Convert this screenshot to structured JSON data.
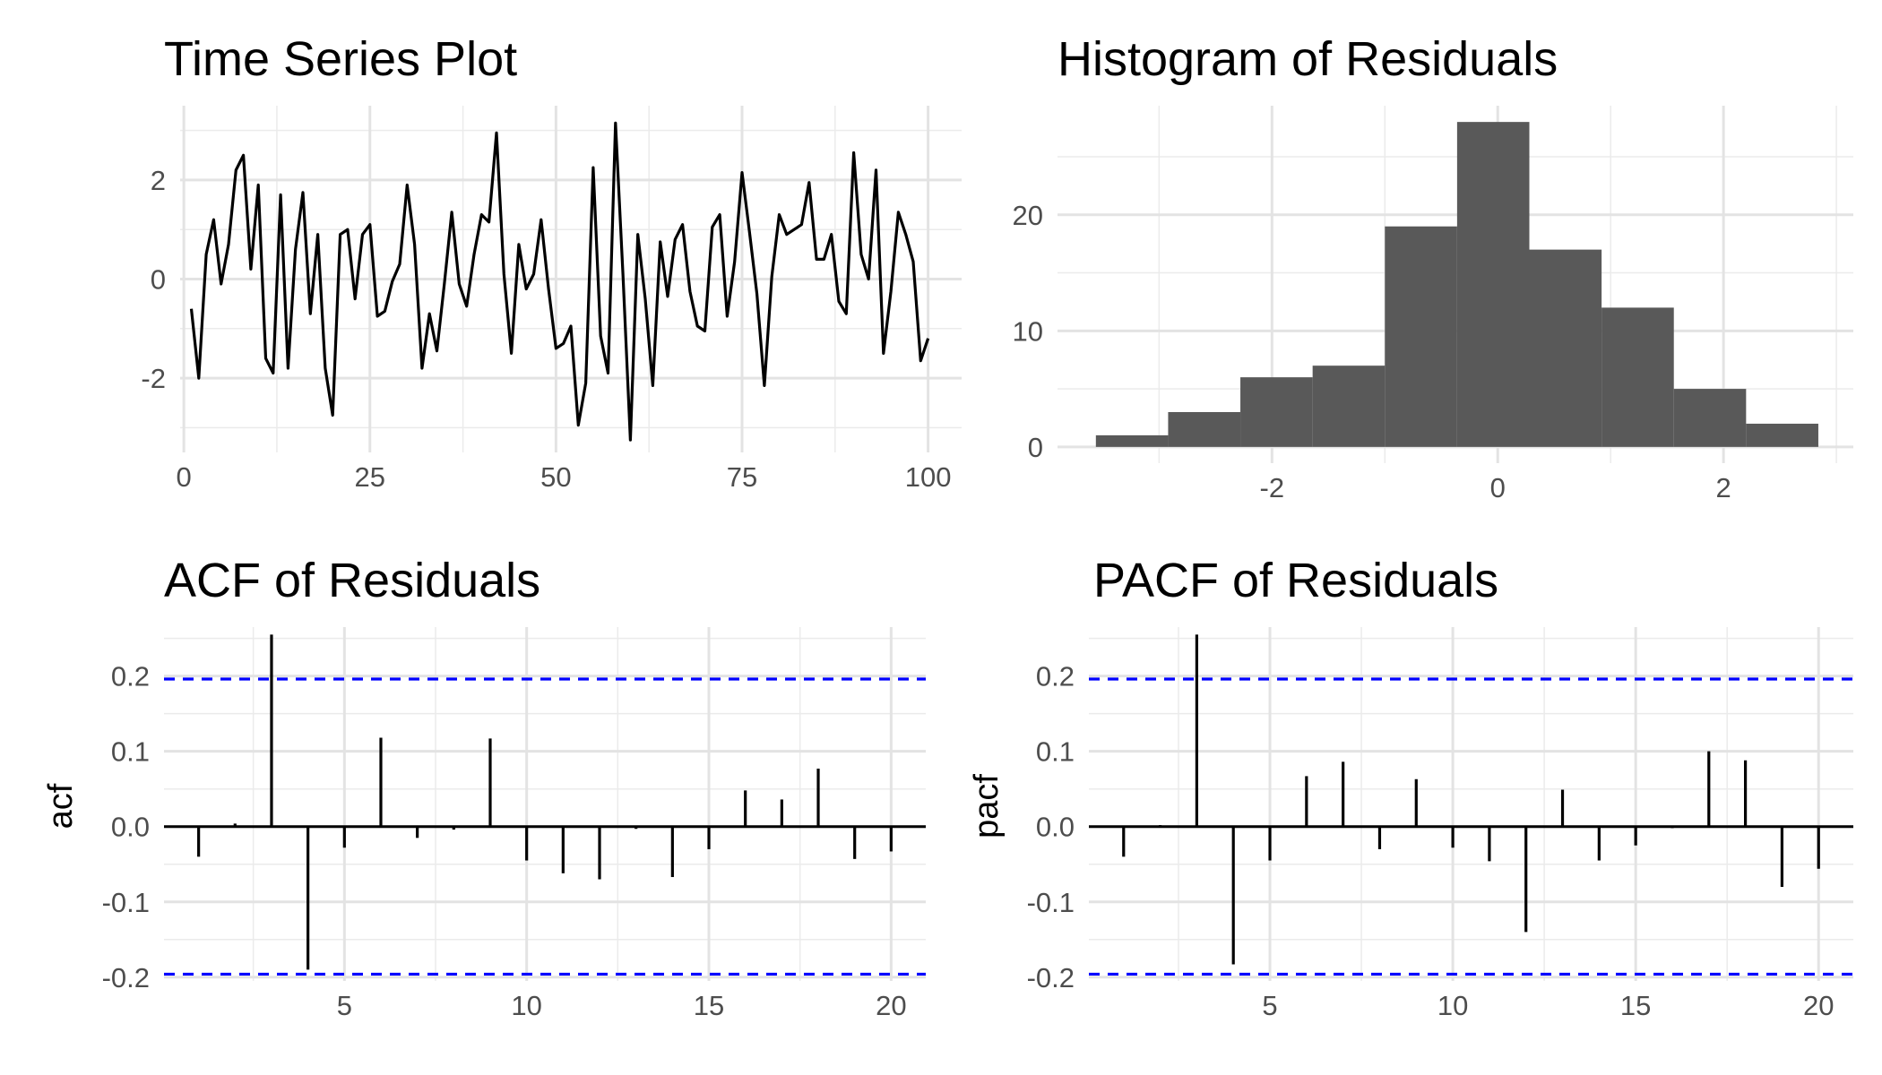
{
  "chart_data": [
    {
      "id": "ts",
      "type": "line",
      "title": "Time Series Plot",
      "xlabel": "",
      "ylabel": "",
      "xlim": [
        -0.5,
        104.5
      ],
      "ylim": [
        -3.5,
        3.5
      ],
      "x_ticks": [
        0,
        25,
        50,
        75,
        100
      ],
      "x_tick_labels": [
        "0",
        "25",
        "50",
        "75",
        "100"
      ],
      "y_ticks": [
        -2,
        0,
        2
      ],
      "y_tick_labels": [
        "-2",
        "0",
        "2"
      ],
      "grid": true,
      "line_color": "#000000",
      "series": [
        {
          "x": [
            1,
            2,
            3,
            4,
            5,
            6,
            7,
            8,
            9,
            10,
            11,
            12,
            13,
            14,
            15,
            16,
            17,
            18,
            19,
            20,
            21,
            22,
            23,
            24,
            25,
            26,
            27,
            28,
            29,
            30,
            31,
            32,
            33,
            34,
            35,
            36,
            37,
            38,
            39,
            40,
            41,
            42,
            43,
            44,
            45,
            46,
            47,
            48,
            49,
            50,
            51,
            52,
            53,
            54,
            55,
            56,
            57,
            58,
            59,
            60,
            61,
            62,
            63,
            64,
            65,
            66,
            67,
            68,
            69,
            70,
            71,
            72,
            73,
            74,
            75,
            76,
            77,
            78,
            79,
            80,
            81,
            82,
            83,
            84,
            85,
            86,
            87,
            88,
            89,
            90,
            91,
            92,
            93,
            94,
            95,
            96,
            97,
            98,
            99,
            100
          ],
          "values": [
            -0.6,
            -2.0,
            0.5,
            1.2,
            -0.1,
            0.7,
            2.2,
            2.5,
            0.2,
            1.9,
            -1.6,
            -1.9,
            1.7,
            -1.8,
            0.6,
            1.75,
            -0.7,
            0.9,
            -1.8,
            -2.75,
            0.9,
            1.0,
            -0.4,
            0.9,
            1.1,
            -0.75,
            -0.65,
            -0.05,
            0.3,
            1.9,
            0.7,
            -1.8,
            -0.7,
            -1.45,
            -0.1,
            1.35,
            -0.1,
            -0.55,
            0.5,
            1.3,
            1.15,
            2.95,
            0.1,
            -1.5,
            0.7,
            -0.2,
            0.1,
            1.2,
            -0.2,
            -1.4,
            -1.3,
            -0.95,
            -2.95,
            -2.1,
            2.25,
            -1.15,
            -1.9,
            3.15,
            0.1,
            -3.25,
            0.9,
            -0.4,
            -2.15,
            0.75,
            -0.35,
            0.8,
            1.1,
            -0.25,
            -0.95,
            -1.05,
            1.05,
            1.3,
            -0.75,
            0.35,
            2.15,
            0.95,
            -0.3,
            -2.15,
            0.05,
            1.3,
            0.9,
            1.0,
            1.1,
            1.95,
            0.4,
            0.4,
            0.9,
            -0.45,
            -0.7,
            2.55,
            0.5,
            0.0,
            2.2,
            -1.5,
            -0.25,
            1.35,
            0.9,
            0.35,
            -1.65,
            -1.2
          ]
        }
      ]
    },
    {
      "id": "hist",
      "type": "bar",
      "title": "Histogram of Residuals",
      "xlabel": "",
      "ylabel": "",
      "xlim": [
        -3.9,
        3.15
      ],
      "ylim": [
        -1.4,
        29.4
      ],
      "x_ticks": [
        -2,
        0,
        2
      ],
      "x_tick_labels": [
        "-2",
        "0",
        "2"
      ],
      "y_ticks": [
        0,
        10,
        20
      ],
      "y_tick_labels": [
        "0",
        "10",
        "20"
      ],
      "grid": true,
      "bar_color": "#595959",
      "bins": [
        {
          "x0": -3.56,
          "x1": -2.92,
          "count": 1
        },
        {
          "x0": -2.92,
          "x1": -2.28,
          "count": 3
        },
        {
          "x0": -2.28,
          "x1": -1.64,
          "count": 6
        },
        {
          "x0": -1.64,
          "x1": -1.0,
          "count": 7
        },
        {
          "x0": -1.0,
          "x1": -0.36,
          "count": 19
        },
        {
          "x0": -0.36,
          "x1": 0.28,
          "count": 28
        },
        {
          "x0": 0.28,
          "x1": 0.92,
          "count": 17
        },
        {
          "x0": 0.92,
          "x1": 1.56,
          "count": 12
        },
        {
          "x0": 1.56,
          "x1": 2.2,
          "count": 5
        },
        {
          "x0": 2.2,
          "x1": 2.84,
          "count": 2
        }
      ]
    },
    {
      "id": "acf",
      "type": "bar",
      "title": "ACF of Residuals",
      "xlabel": "",
      "ylabel": "acf",
      "xlim": [
        0.05,
        20.95
      ],
      "ylim": [
        -0.205,
        0.265
      ],
      "x_ticks": [
        5,
        10,
        15,
        20
      ],
      "x_tick_labels": [
        "5",
        "10",
        "15",
        "20"
      ],
      "y_ticks": [
        -0.2,
        -0.1,
        0.0,
        0.1,
        0.2
      ],
      "y_tick_labels": [
        "-0.2",
        "-0.1",
        "0.0",
        "0.1",
        "0.2"
      ],
      "grid": true,
      "confidence_bound": 0.196,
      "bound_color": "#0000ff",
      "lags": [
        1,
        2,
        3,
        4,
        5,
        6,
        7,
        8,
        9,
        10,
        11,
        12,
        13,
        14,
        15,
        16,
        17,
        18,
        19,
        20
      ],
      "values": [
        -0.04,
        0.004,
        0.255,
        -0.19,
        -0.028,
        0.118,
        -0.015,
        -0.004,
        0.117,
        -0.045,
        -0.062,
        -0.07,
        -0.003,
        -0.067,
        -0.03,
        0.048,
        0.036,
        0.077,
        -0.043,
        -0.033
      ]
    },
    {
      "id": "pacf",
      "type": "bar",
      "title": "PACF of Residuals",
      "xlabel": "",
      "ylabel": "pacf",
      "xlim": [
        0.05,
        20.95
      ],
      "ylim": [
        -0.205,
        0.265
      ],
      "x_ticks": [
        5,
        10,
        15,
        20
      ],
      "x_tick_labels": [
        "5",
        "10",
        "15",
        "20"
      ],
      "y_ticks": [
        -0.2,
        -0.1,
        0.0,
        0.1,
        0.2
      ],
      "y_tick_labels": [
        "-0.2",
        "-0.1",
        "0.0",
        "0.1",
        "0.2"
      ],
      "grid": true,
      "confidence_bound": 0.196,
      "bound_color": "#0000ff",
      "lags": [
        1,
        2,
        3,
        4,
        5,
        6,
        7,
        8,
        9,
        10,
        11,
        12,
        13,
        14,
        15,
        16,
        17,
        18,
        19,
        20
      ],
      "values": [
        -0.04,
        0.002,
        0.255,
        -0.183,
        -0.045,
        0.067,
        0.086,
        -0.03,
        0.063,
        -0.028,
        -0.046,
        -0.14,
        0.049,
        -0.045,
        -0.025,
        -0.002,
        0.1,
        0.088,
        -0.08,
        -0.056
      ]
    }
  ]
}
